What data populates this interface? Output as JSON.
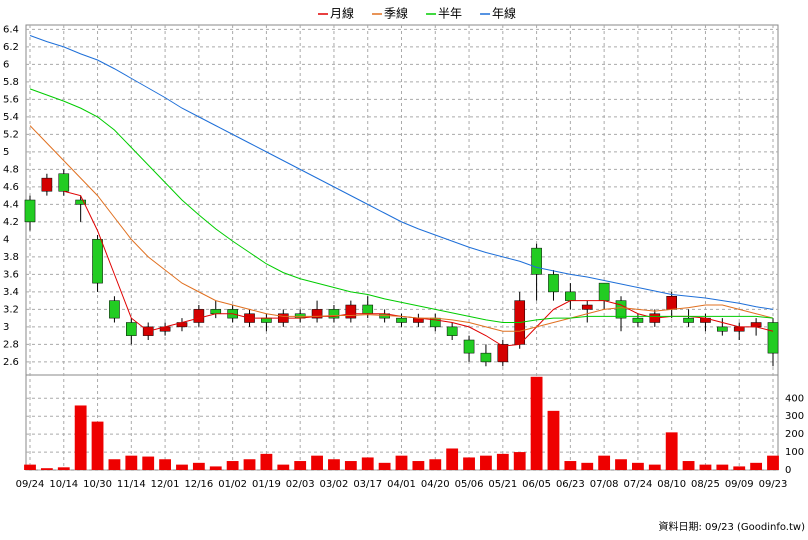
{
  "chart_data": [
    {
      "type": "candlestick",
      "categories": [
        "09/24",
        null,
        "10/14",
        null,
        "10/30",
        null,
        "11/14",
        null,
        "12/01",
        null,
        "12/16",
        null,
        "01/02",
        null,
        "01/19",
        null,
        "02/03",
        null,
        "03/02",
        null,
        "03/17",
        null,
        "04/01",
        null,
        "04/20",
        null,
        "05/06",
        null,
        "05/21",
        null,
        "06/05",
        null,
        "06/23",
        null,
        "07/08",
        null,
        "07/24",
        null,
        "08/10",
        null,
        "08/25",
        null,
        "09/09",
        null,
        "09/23"
      ],
      "open": [
        4.45,
        4.55,
        4.75,
        4.45,
        4.0,
        3.3,
        3.05,
        2.9,
        2.95,
        3.0,
        3.05,
        3.2,
        3.2,
        3.05,
        3.1,
        3.05,
        3.15,
        3.1,
        3.2,
        3.1,
        3.25,
        3.15,
        3.1,
        3.05,
        3.1,
        3.0,
        2.85,
        2.7,
        2.6,
        2.8,
        3.9,
        3.6,
        3.4,
        3.2,
        3.5,
        3.3,
        3.1,
        3.05,
        3.2,
        3.1,
        3.05,
        3.0,
        2.95,
        3.0,
        3.05
      ],
      "high": [
        4.5,
        4.75,
        4.8,
        4.5,
        4.05,
        3.35,
        3.1,
        3.05,
        3.05,
        3.1,
        3.25,
        3.3,
        3.25,
        3.2,
        3.15,
        3.2,
        3.2,
        3.3,
        3.25,
        3.3,
        3.35,
        3.2,
        3.15,
        3.15,
        3.15,
        3.05,
        2.9,
        2.8,
        2.85,
        3.4,
        3.95,
        3.65,
        3.5,
        3.3,
        3.5,
        3.35,
        3.15,
        3.2,
        3.4,
        3.2,
        3.15,
        3.1,
        3.05,
        3.1,
        3.1
      ],
      "low": [
        4.1,
        4.5,
        4.5,
        4.2,
        3.4,
        3.05,
        2.8,
        2.85,
        2.9,
        2.95,
        3.0,
        3.1,
        3.05,
        3.0,
        2.95,
        3.0,
        3.05,
        3.05,
        3.05,
        3.05,
        3.1,
        3.05,
        3.0,
        3.0,
        2.95,
        2.85,
        2.6,
        2.55,
        2.55,
        2.75,
        3.3,
        3.3,
        3.2,
        3.05,
        3.2,
        2.95,
        3.0,
        3.0,
        3.1,
        3.0,
        2.95,
        2.9,
        2.85,
        2.9,
        2.55
      ],
      "close": [
        4.2,
        4.7,
        4.55,
        4.4,
        3.5,
        3.1,
        2.9,
        3.0,
        3.0,
        3.05,
        3.2,
        3.15,
        3.1,
        3.15,
        3.05,
        3.15,
        3.1,
        3.2,
        3.1,
        3.25,
        3.15,
        3.1,
        3.05,
        3.1,
        3.0,
        2.9,
        2.7,
        2.6,
        2.8,
        3.3,
        3.6,
        3.4,
        3.3,
        3.25,
        3.3,
        3.1,
        3.05,
        3.15,
        3.35,
        3.05,
        3.1,
        2.95,
        3.0,
        3.05,
        2.7
      ],
      "up_color": "#d40000",
      "down_color": "#22cc22",
      "series": [
        {
          "name": "月線",
          "color": "#e00000",
          "values": [
            null,
            null,
            4.55,
            4.5,
            4.1,
            3.6,
            3.1,
            2.95,
            3.0,
            3.05,
            3.1,
            3.15,
            3.15,
            3.1,
            3.1,
            3.1,
            3.1,
            3.12,
            3.12,
            3.15,
            3.15,
            3.15,
            3.12,
            3.1,
            3.08,
            3.05,
            3.0,
            2.9,
            2.78,
            2.8,
            3.0,
            3.2,
            3.3,
            3.3,
            3.3,
            3.25,
            3.15,
            3.1,
            3.12,
            3.12,
            3.1,
            3.05,
            3.0,
            3.0,
            2.95
          ]
        },
        {
          "name": "季線",
          "color": "#e07020",
          "values": [
            5.3,
            5.1,
            4.9,
            4.7,
            4.5,
            4.25,
            4.0,
            3.8,
            3.65,
            3.5,
            3.4,
            3.3,
            3.25,
            3.2,
            3.15,
            3.12,
            3.12,
            3.12,
            3.13,
            3.13,
            3.14,
            3.13,
            3.12,
            3.1,
            3.1,
            3.08,
            3.05,
            3.0,
            2.95,
            2.95,
            3.0,
            3.05,
            3.1,
            3.15,
            3.2,
            3.22,
            3.2,
            3.18,
            3.2,
            3.22,
            3.25,
            3.25,
            3.2,
            3.15,
            3.1
          ]
        },
        {
          "name": "半年",
          "color": "#00cc00",
          "values": [
            5.72,
            5.65,
            5.58,
            5.5,
            5.4,
            5.25,
            5.05,
            4.85,
            4.65,
            4.45,
            4.28,
            4.12,
            3.98,
            3.85,
            3.72,
            3.62,
            3.55,
            3.5,
            3.45,
            3.4,
            3.37,
            3.32,
            3.28,
            3.24,
            3.2,
            3.16,
            3.12,
            3.08,
            3.05,
            3.05,
            3.08,
            3.1,
            3.1,
            3.12,
            3.12,
            3.12,
            3.12,
            3.12,
            3.12,
            3.12,
            3.12,
            3.12,
            3.12,
            3.12,
            3.1
          ]
        },
        {
          "name": "年線",
          "color": "#1e6fd8",
          "values": [
            6.33,
            6.26,
            6.2,
            6.12,
            6.05,
            5.95,
            5.84,
            5.73,
            5.62,
            5.5,
            5.4,
            5.3,
            5.2,
            5.1,
            5.0,
            4.9,
            4.8,
            4.7,
            4.6,
            4.5,
            4.4,
            4.3,
            4.2,
            4.12,
            4.05,
            3.98,
            3.91,
            3.85,
            3.8,
            3.75,
            3.68,
            3.64,
            3.6,
            3.57,
            3.53,
            3.49,
            3.45,
            3.41,
            3.37,
            3.35,
            3.33,
            3.3,
            3.27,
            3.23,
            3.2
          ]
        }
      ],
      "ylim": [
        2.45,
        6.45
      ],
      "yticks": [
        2.6,
        2.8,
        3,
        3.2,
        3.4,
        3.6,
        3.8,
        4,
        4.2,
        4.4,
        4.6,
        4.8,
        5,
        5.2,
        5.4,
        5.6,
        5.8,
        6,
        6.2,
        6.4
      ],
      "grid": true
    },
    {
      "type": "bar",
      "values": [
        30,
        10,
        15,
        360,
        270,
        60,
        80,
        75,
        60,
        30,
        40,
        20,
        50,
        60,
        90,
        30,
        50,
        80,
        60,
        50,
        70,
        40,
        80,
        50,
        60,
        120,
        70,
        80,
        90,
        100,
        520,
        330,
        50,
        40,
        80,
        60,
        40,
        30,
        210,
        50,
        30,
        30,
        20,
        40,
        80
      ],
      "color": "#ee0000",
      "ylim": [
        0,
        530
      ],
      "yticks": [
        0,
        100,
        200,
        300,
        400
      ],
      "grid": true,
      "source": "資料日期: 09/23  (Goodinfo.tw)"
    }
  ]
}
